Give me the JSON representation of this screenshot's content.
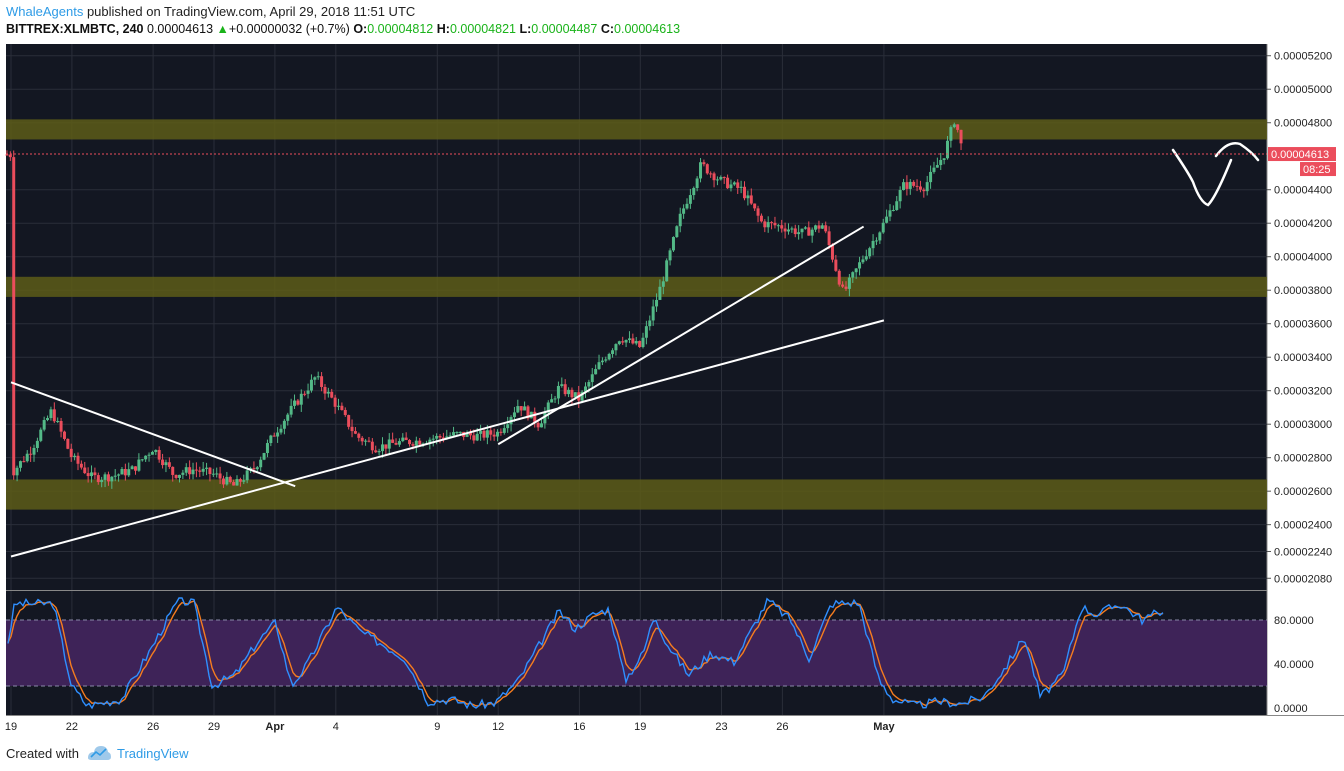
{
  "header": {
    "author": "WhaleAgents",
    "published_text": " published on TradingView.com, April 29, 2018 11:51 UTC",
    "symbol": "BITTREX:XLMBTC, 240",
    "last": "0.00004613",
    "change_arrow": "▲",
    "change": "+0.00000032 (+0.7%)",
    "o_label": "O:",
    "o_value": "0.00004812",
    "h_label": "H:",
    "h_value": "0.00004821",
    "l_label": "L:",
    "l_value": "0.00004487",
    "c_label": "C:",
    "c_value": "0.00004613"
  },
  "price_axis": {
    "ticks": [
      "0.00005200",
      "0.00005000",
      "0.00004800",
      "0.00004400",
      "0.00004200",
      "0.00004000",
      "0.00003800",
      "0.00003600",
      "0.00003400",
      "0.00003200",
      "0.00003000",
      "0.00002800",
      "0.00002600",
      "0.00002400",
      "0.00002240",
      "0.00002080"
    ],
    "current_price_label": "0.00004613",
    "countdown_label": "08:25"
  },
  "time_axis": {
    "labels": [
      "19",
      "22",
      "26",
      "29",
      "Apr",
      "4",
      "9",
      "12",
      "16",
      "19",
      "23",
      "26",
      "May"
    ]
  },
  "oscillator": {
    "ticks": [
      "80.0000",
      "40.0000",
      "0.0000"
    ],
    "upper_level": 80,
    "lower_level": 20
  },
  "colors": {
    "background": "#131722",
    "up_candle": "#53b987",
    "down_candle": "#eb4d5c",
    "zone": "#5d5c18",
    "stoch_k": "#2f8fff",
    "stoch_d": "#f57c1f",
    "osc_band": "#3e2358",
    "price_tag": "#eb4d5c"
  },
  "chart_data": {
    "type": "candlestick",
    "symbol": "BITTREX:XLMBTC",
    "interval": "240",
    "x_range": [
      "Mar 19",
      "May 1"
    ],
    "y_range": [
      2.01e-05,
      5.27e-05
    ],
    "current_price": 4.613e-05,
    "support_resistance_zones": [
      {
        "from": 4.7e-05,
        "to": 4.82e-05
      },
      {
        "from": 3.76e-05,
        "to": 3.88e-05
      },
      {
        "from": 2.49e-05,
        "to": 2.67e-05
      }
    ],
    "trendlines": [
      {
        "from": [
          "Mar 19",
          3.25e-05
        ],
        "to": [
          "Apr 2",
          2.63e-05
        ]
      },
      {
        "from": [
          "Mar 19",
          2.21e-05
        ],
        "to": [
          "May 1",
          3.62e-05
        ]
      },
      {
        "from": [
          "Apr 12",
          2.88e-05
        ],
        "to": [
          "Apr 30",
          4.18e-05
        ]
      }
    ],
    "stochastic_range": [
      0,
      100
    ]
  },
  "footer": {
    "created_with": "Created with",
    "brand": "TradingView"
  }
}
